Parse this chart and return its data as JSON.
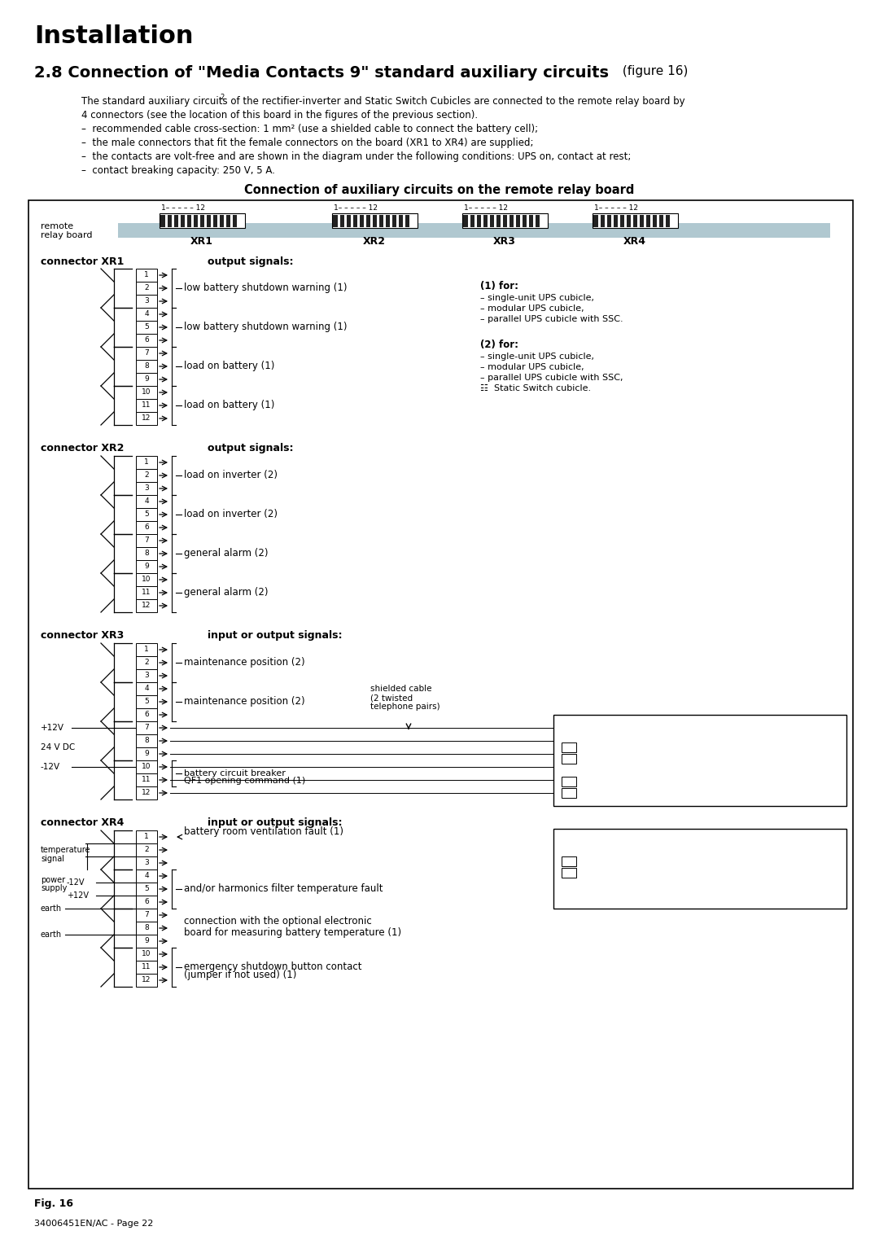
{
  "title": "Installation",
  "section_title_bold": "2.8 Connection of \"Media Contacts 9\" standard auxiliary circuits",
  "section_title_light": " (figure 16)",
  "body_lines": [
    "The standard auxiliary circuits of the rectifier-inverter and Static Switch Cubicles are connected to the remote relay board by",
    "4 connectors (see the location of this board in the figures of the previous section).",
    "–  recommended cable cross-section: 1 mm² (use a shielded cable to connect the battery cell);",
    "–  the male connectors that fit the female connectors on the board (XR1 to XR4) are supplied;",
    "–  the contacts are volt-free and are shown in the diagram under the following conditions: UPS on, contact at rest;",
    "–  contact breaking capacity: 250 V, 5 A."
  ],
  "diag_title": "Connection of auxiliary circuits on the remote relay board",
  "fig_label": "Fig. 16",
  "footer": "34006451EN/AC - Page 22",
  "xr_labels": [
    "XR1",
    "XR2",
    "XR3",
    "XR4"
  ],
  "xr1_signals": [
    "low battery shutdown warning (1)",
    "low battery shutdown warning (1)",
    "load on battery (1)",
    "load on battery (1)"
  ],
  "xr2_signals": [
    "load on inverter (2)",
    "load on inverter (2)",
    "general alarm (2)",
    "general alarm (2)"
  ],
  "xr3_signals_1": "maintenance position (2)",
  "xr3_signals_2": "maintenance position (2)",
  "xr3_battery_label": "battery circuit breaker\nQF1 opening command (1)",
  "note1_title": "(1) for:",
  "note1_lines": [
    "– single-unit UPS cubicle,",
    "– modular UPS cubicle,",
    "– parallel UPS cubicle with SSC."
  ],
  "note2_title": "(2) for:",
  "note2_lines": [
    "– single-unit UPS cubicle,",
    "– modular UPS cubicle,",
    "– parallel UPS cubicle with SSC,",
    "☷  Static Switch cubicle."
  ]
}
